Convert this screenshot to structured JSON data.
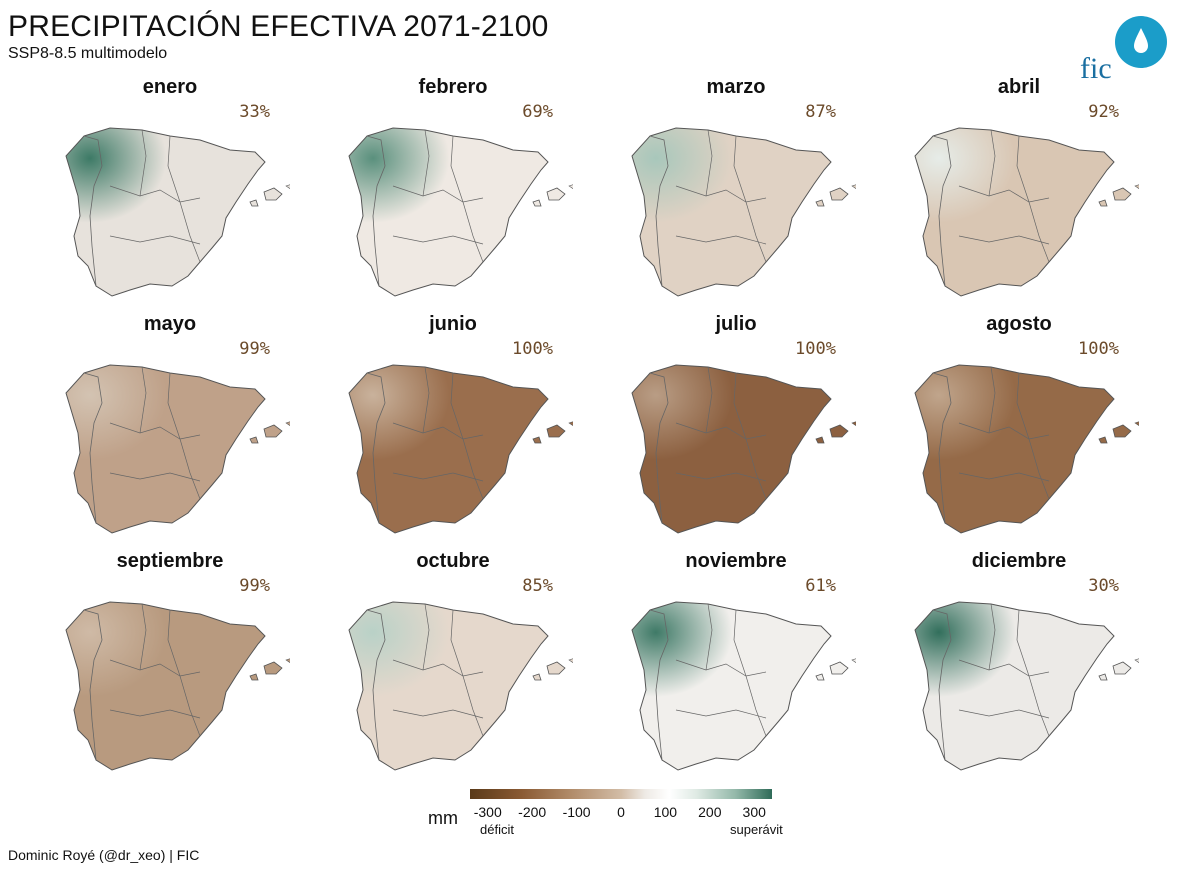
{
  "title": "PRECIPITACIÓN EFECTIVA 2071-2100",
  "subtitle": "SSP8-8.5 multimodelo",
  "logo_text": "fic",
  "panels": [
    {
      "month": "enero",
      "pct": "33%",
      "fill": "#e7e2dc",
      "wet": "#3d7a66"
    },
    {
      "month": "febrero",
      "pct": "69%",
      "fill": "#efe9e3",
      "wet": "#5a907d"
    },
    {
      "month": "marzo",
      "pct": "87%",
      "fill": "#e0d2c4",
      "wet": "#a8c7bb"
    },
    {
      "month": "abril",
      "pct": "92%",
      "fill": "#d9c6b3",
      "wet": "#e6ece8"
    },
    {
      "month": "mayo",
      "pct": "99%",
      "fill": "#bfa189",
      "wet": "#d3c3b2"
    },
    {
      "month": "junio",
      "pct": "100%",
      "fill": "#9a6e4d",
      "wet": "#c9b29c"
    },
    {
      "month": "julio",
      "pct": "100%",
      "fill": "#8c6040",
      "wet": "#b99d85"
    },
    {
      "month": "agosto",
      "pct": "100%",
      "fill": "#956a48",
      "wet": "#c0a58c"
    },
    {
      "month": "septiembre",
      "pct": "99%",
      "fill": "#b89a7f",
      "wet": "#cfbaa6"
    },
    {
      "month": "octubre",
      "pct": "85%",
      "fill": "#e5d8cc",
      "wet": "#b9d1c7"
    },
    {
      "month": "noviembre",
      "pct": "61%",
      "fill": "#f1efec",
      "wet": "#3f7a67"
    },
    {
      "month": "diciembre",
      "pct": "30%",
      "fill": "#eceae7",
      "wet": "#326f5c"
    }
  ],
  "legend": {
    "unit": "mm",
    "ticks": [
      "-300",
      "-200",
      "-100",
      "0",
      "100",
      "200",
      "300"
    ],
    "tick_values": [
      -300,
      -200,
      -100,
      0,
      100,
      200,
      300
    ],
    "low_label": "déficit",
    "high_label": "superávit"
  },
  "credit": "Dominic Royé (@dr_xeo) | FIC"
}
